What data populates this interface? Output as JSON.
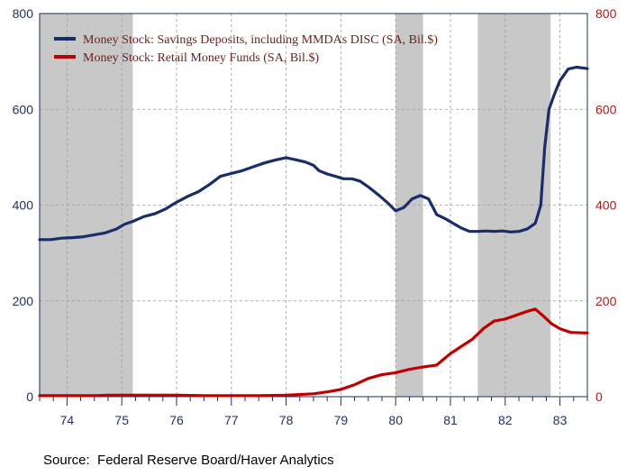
{
  "source": "Source:  Federal Reserve Board/Haver Analytics",
  "chart_data": {
    "type": "line",
    "title": "",
    "xlabel": "",
    "ylabel": "",
    "x_range": [
      1973.5,
      1983.5
    ],
    "x_tick_labels": [
      "74",
      "75",
      "76",
      "77",
      "78",
      "79",
      "80",
      "81",
      "82",
      "83"
    ],
    "y_left": {
      "range": [
        0,
        800
      ],
      "ticks": [
        "0",
        "200",
        "400",
        "600",
        "800"
      ],
      "color": "#1f2f5f"
    },
    "y_right": {
      "range": [
        0,
        800
      ],
      "ticks": [
        "0",
        "200",
        "400",
        "600",
        "800"
      ],
      "color": "#b01818"
    },
    "grid": "dashed",
    "legend_position": "top-left",
    "recession_shading": [
      [
        1973.5,
        1975.2
      ],
      [
        1980.0,
        1980.5
      ],
      [
        1981.5,
        1982.83
      ]
    ],
    "series": [
      {
        "name": "Money Stock: Savings Deposits, including MMDAs DISC (SA, Bil.$)",
        "color": "#1a2d6b",
        "points": [
          [
            1973.5,
            328
          ],
          [
            1973.7,
            328
          ],
          [
            1973.9,
            331
          ],
          [
            1974.1,
            332
          ],
          [
            1974.3,
            334
          ],
          [
            1974.5,
            338
          ],
          [
            1974.7,
            342
          ],
          [
            1974.9,
            350
          ],
          [
            1975.05,
            360
          ],
          [
            1975.2,
            366
          ],
          [
            1975.4,
            376
          ],
          [
            1975.6,
            382
          ],
          [
            1975.8,
            392
          ],
          [
            1976.0,
            406
          ],
          [
            1976.2,
            418
          ],
          [
            1976.4,
            428
          ],
          [
            1976.6,
            443
          ],
          [
            1976.8,
            460
          ],
          [
            1977.0,
            466
          ],
          [
            1977.2,
            472
          ],
          [
            1977.4,
            480
          ],
          [
            1977.6,
            488
          ],
          [
            1977.8,
            494
          ],
          [
            1978.0,
            499
          ],
          [
            1978.2,
            494
          ],
          [
            1978.35,
            490
          ],
          [
            1978.5,
            483
          ],
          [
            1978.6,
            472
          ],
          [
            1978.75,
            465
          ],
          [
            1978.9,
            460
          ],
          [
            1979.05,
            455
          ],
          [
            1979.2,
            455
          ],
          [
            1979.35,
            450
          ],
          [
            1979.5,
            438
          ],
          [
            1979.7,
            420
          ],
          [
            1979.85,
            405
          ],
          [
            1980.0,
            388
          ],
          [
            1980.15,
            395
          ],
          [
            1980.3,
            413
          ],
          [
            1980.45,
            420
          ],
          [
            1980.6,
            413
          ],
          [
            1980.75,
            380
          ],
          [
            1980.9,
            372
          ],
          [
            1981.05,
            362
          ],
          [
            1981.2,
            352
          ],
          [
            1981.35,
            345
          ],
          [
            1981.5,
            345
          ],
          [
            1981.65,
            346
          ],
          [
            1981.8,
            345
          ],
          [
            1981.95,
            346
          ],
          [
            1982.1,
            344
          ],
          [
            1982.25,
            345
          ],
          [
            1982.4,
            350
          ],
          [
            1982.55,
            362
          ],
          [
            1982.65,
            400
          ],
          [
            1982.72,
            520
          ],
          [
            1982.8,
            600
          ],
          [
            1982.9,
            632
          ],
          [
            1983.0,
            660
          ],
          [
            1983.15,
            684
          ],
          [
            1983.3,
            688
          ],
          [
            1983.5,
            685
          ]
        ]
      },
      {
        "name": "Money Stock: Retail Money Funds (SA, Bil.$)",
        "color": "#c00000",
        "points": [
          [
            1973.5,
            2
          ],
          [
            1974.5,
            2
          ],
          [
            1974.75,
            3
          ],
          [
            1975.5,
            3
          ],
          [
            1976.0,
            3
          ],
          [
            1976.5,
            2
          ],
          [
            1977.0,
            2
          ],
          [
            1977.5,
            2
          ],
          [
            1978.0,
            3
          ],
          [
            1978.5,
            6
          ],
          [
            1978.75,
            10
          ],
          [
            1979.0,
            15
          ],
          [
            1979.25,
            25
          ],
          [
            1979.5,
            38
          ],
          [
            1979.75,
            46
          ],
          [
            1980.0,
            50
          ],
          [
            1980.25,
            57
          ],
          [
            1980.5,
            62
          ],
          [
            1980.75,
            66
          ],
          [
            1981.0,
            90
          ],
          [
            1981.2,
            105
          ],
          [
            1981.4,
            120
          ],
          [
            1981.6,
            142
          ],
          [
            1981.8,
            158
          ],
          [
            1982.0,
            162
          ],
          [
            1982.2,
            170
          ],
          [
            1982.4,
            178
          ],
          [
            1982.55,
            183
          ],
          [
            1982.7,
            168
          ],
          [
            1982.85,
            152
          ],
          [
            1983.0,
            142
          ],
          [
            1983.2,
            134
          ],
          [
            1983.5,
            133
          ]
        ]
      }
    ]
  }
}
